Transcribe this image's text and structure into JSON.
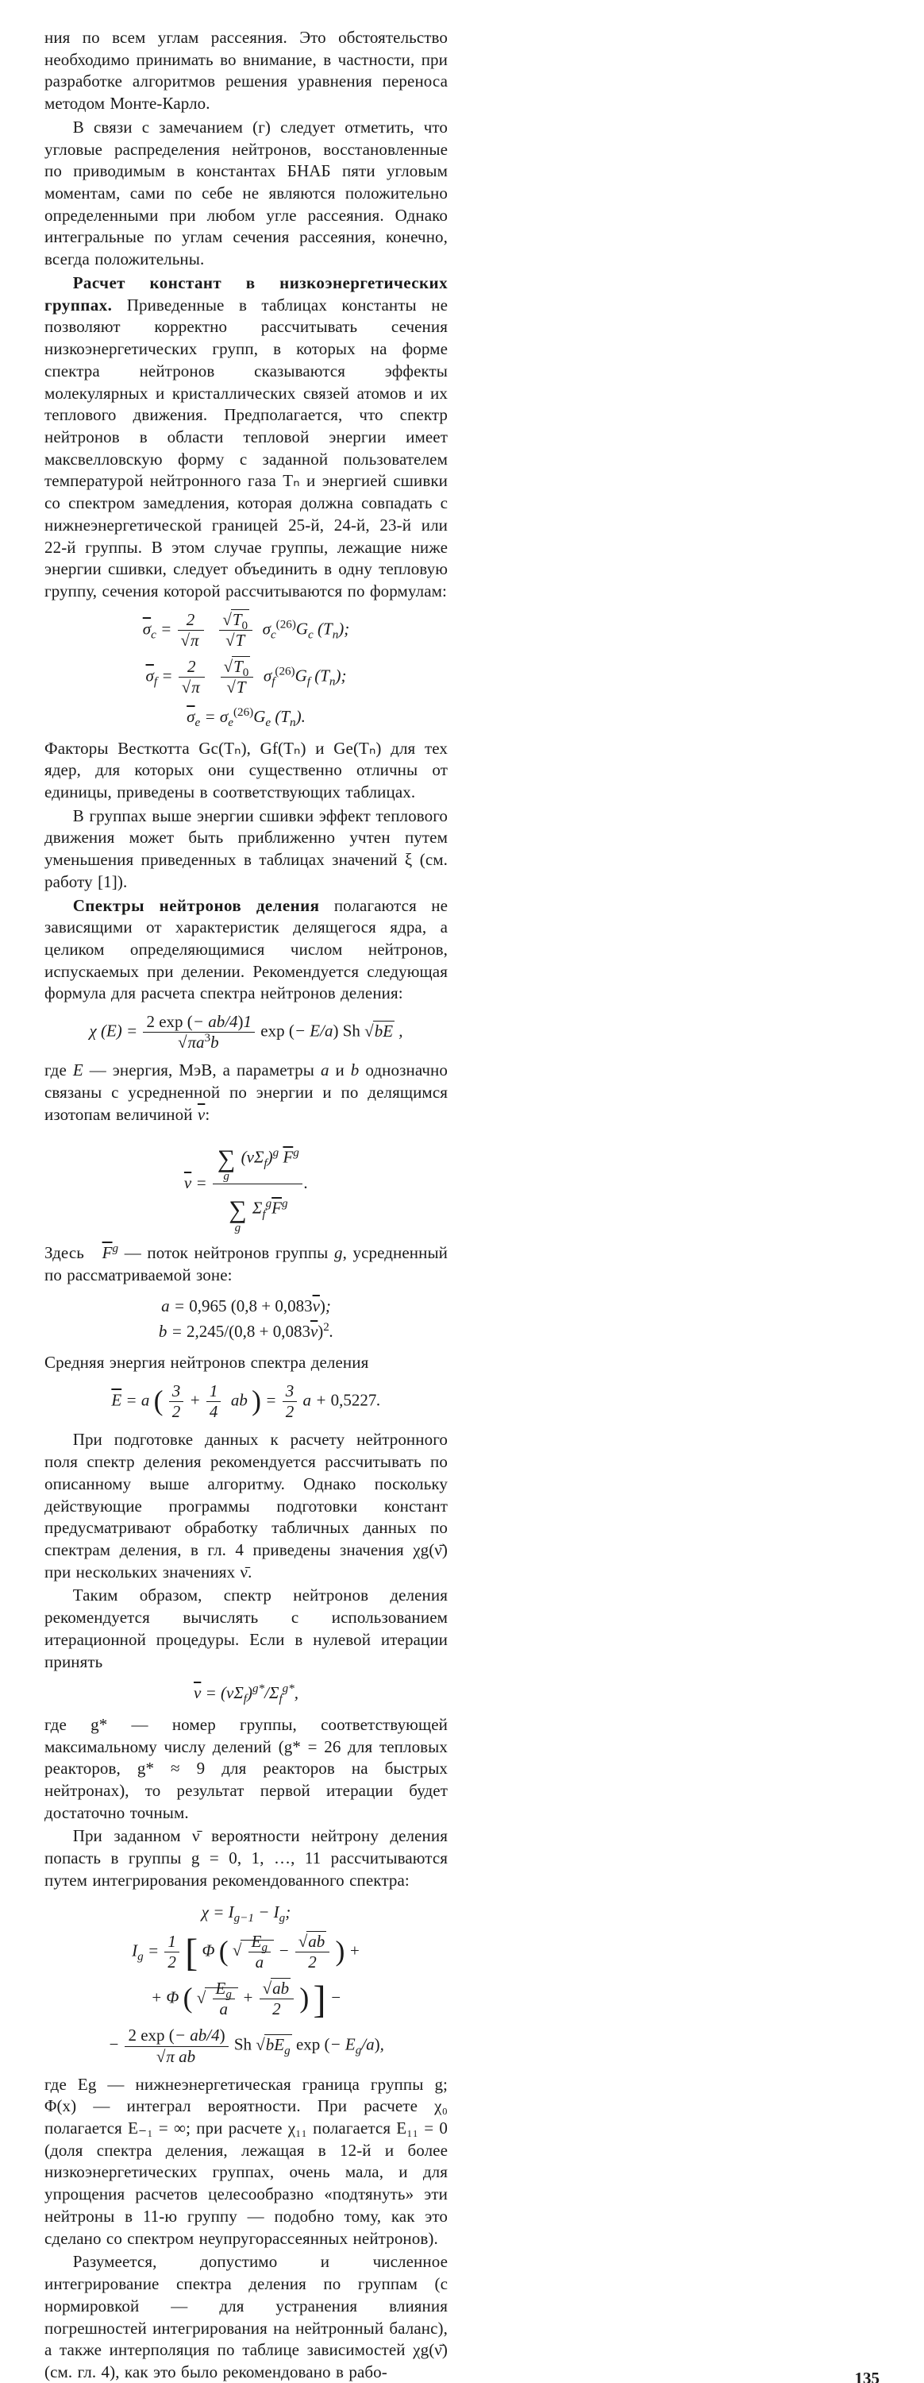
{
  "page_number": "135",
  "left": {
    "p1": "ния по всем углам рассеяния. Это обстоятельство необходимо принимать во внимание, в частности, при разработке алгоритмов решения уравнения переноса методом Монте-Карло.",
    "p2": "В связи с замечанием (г) следует отметить, что угловые распределения нейтронов, восстановленные по приводимым в константах БНАБ пяти угловым моментам, сами по себе не являются положительно определенными при любом угле рассеяния. Однако интегральные по углам сечения рассеяния, конечно, всегда положительны.",
    "p3_lead": "Расчет констант в низкоэнергетических группах.",
    "p3": " Приведенные в таблицах константы не позволяют корректно рассчитывать сечения низкоэнергетических групп, в которых на форме спектра нейтронов сказываются эффекты молекулярных и кристаллических связей атомов и их теплового движения. Предполагается, что спектр нейтронов в области тепловой энергии имеет максвелловскую форму с заданной пользователем температурой нейтронного газа Tₙ и энергией сшивки со спектром замедления, которая должна совпадать с нижнеэнергетической границей 25-й, 24-й, 23-й или 22-й группы. В этом случае группы, лежащие ниже энергии сшивки, следует объединить в одну тепловую группу, сечения которой рассчитываются по формулам:",
    "p4": "Факторы Весткотта Gc(Tₙ), Gf(Tₙ) и Ge(Tₙ) для тех ядер, для которых они существенно отличны от единицы, приведены в соответствующих таблицах.",
    "p5": "В группах выше энергии сшивки эффект теплового движения может быть приближенно учтен путем уменьшения приведенных в таблицах значений ξ (см. работу [1]).",
    "p6_lead": "Спектры нейтронов деления",
    "p6": " полагаются не зависящими от характеристик делящегося ядра, а целиком определяющимися числом нейтронов, испускаемых при делении. Рекомендуется следующая формула для расчета спектра нейтронов деления:",
    "p7_a": "где ",
    "p7_b": " — энергия, МэВ, а параметры ",
    "p7_c": " и ",
    "p7_d": " однозначно связаны с усредненной по энергии и по делящимся изотопам величиной "
  },
  "right": {
    "p1_a": "Здесь ",
    "p1_b": " — поток нейтронов группы ",
    "p1_c": ", усредненный по рассматриваемой зоне:",
    "p2": "Средняя энергия нейтронов спектра деления",
    "p3": "При подготовке данных к расчету нейтронного поля спектр деления рекомендуется рассчитывать по описанному выше алгоритму. Однако поскольку действующие программы подготовки констант предусматривают обработку табличных данных по спектрам деления, в гл. 4 приведены значения χg(ν̄) при нескольких значениях ν̄.",
    "p4": "Таким образом, спектр нейтронов деления рекомендуется вычислять с использованием итерационной процедуры. Если в нулевой итерации принять",
    "p5": "где g* — номер группы, соответствующей максимальному числу делений (g* = 26 для тепловых реакторов, g* ≈ 9 для реакторов на быстрых нейтронах), то результат первой итерации будет достаточно точным.",
    "p6": "При заданном ν̄ вероятности нейтрону деления попасть в группы g = 0, 1, …, 11 рассчитываются путем интегрирования рекомендованного спектра:",
    "p7": "где Eg — нижнеэнергетическая граница группы g; Φ(x) — интеграл вероятности. При расчете χ₀ полагается E₋₁ = ∞; при расчете χ₁₁ полагается E₁₁ = 0 (доля спектра деления, лежащая в 12-й и более низкоэнергетических группах, очень мала, и для упрощения расчетов целесообразно «подтянуть» эти нейтроны в 11-ю группу — подобно тому, как это сделано со спектром неупругорассеянных нейтронов).",
    "p8": "Разумеется, допустимо и численное интегрирование спектра деления по группам (с нормировкой — для устранения влияния погрешностей интегрирования на нейтронный баланс), а также интерполяция по таблице зависимостей χg(ν̄) (см. гл. 4), как это было рекомендовано в рабо-"
  }
}
